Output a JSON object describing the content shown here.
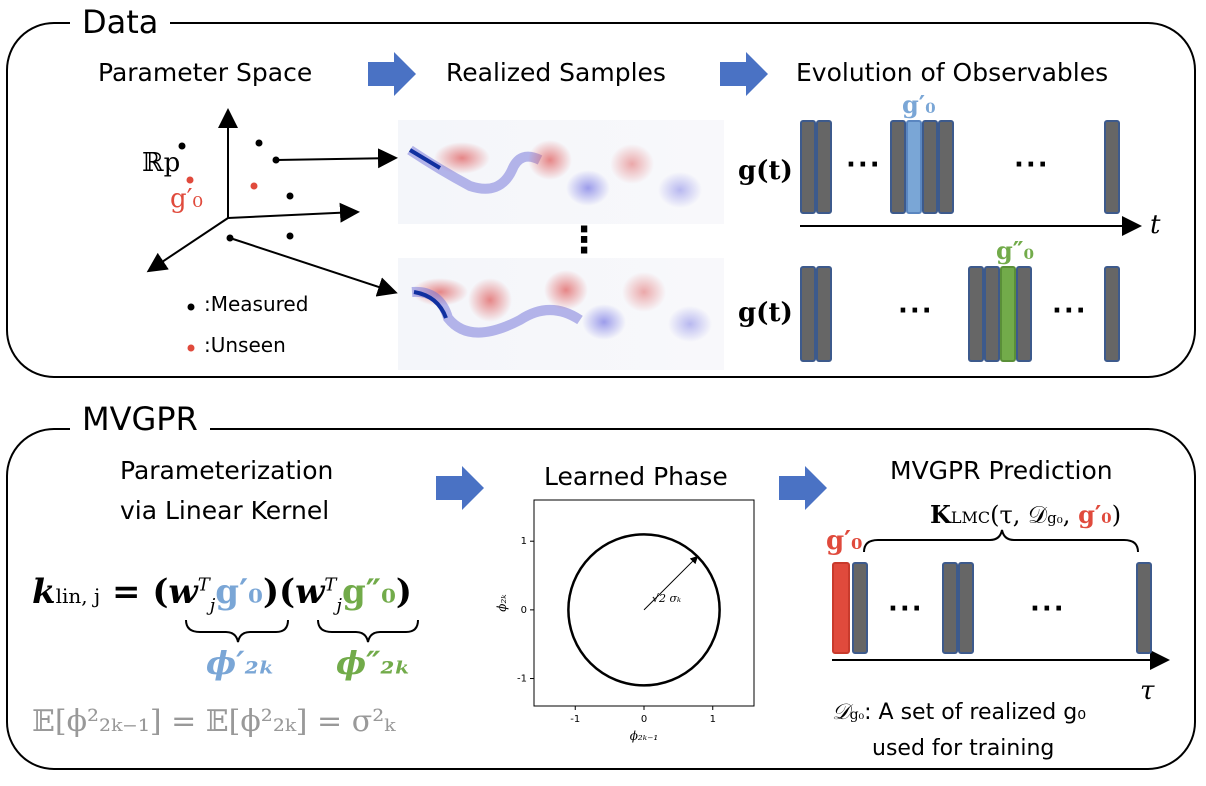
{
  "data_panel": {
    "title": "Data",
    "parameter_space": "Parameter Space",
    "realized_samples": "Realized Samples",
    "evolution": "Evolution of Observables",
    "space_label": "ℝp",
    "unseen_point_label": "g′₀",
    "legend_measured": ":Measured",
    "legend_unseen": ":Unseen",
    "vertical_ellipsis": "⋮",
    "observable_label": "g(t)",
    "time_axis": "t",
    "bar_highlight_1": "g′₀",
    "bar_highlight_2": "g″₀",
    "ellipsis": "···"
  },
  "mvgpr_panel": {
    "title": "MVGPR",
    "param_title_line1": "Parameterization",
    "param_title_line2": "via Linear Kernel",
    "kernel_lhs": "k",
    "kernel_sub": "lin, j",
    "kernel_eq": " = (",
    "kernel_w": "w",
    "kernel_g1": "g′₀",
    "kernel_mid": ")(",
    "kernel_g2": "g″₀",
    "kernel_end": ")",
    "phi_prime": "ϕ′₂ₖ",
    "phi_dprime": "ϕ″₂ₖ",
    "expectation": "𝔼[ϕ²₂ₖ₋₁] = 𝔼[ϕ²₂ₖ] = σ²ₖ",
    "learned_phase": "Learned Phase",
    "radius_label": "√2 σₖ",
    "xlabel": "ϕ₂ₖ₋₁",
    "ylabel": "ϕ₂ₖ",
    "prediction_title": "MVGPR Prediction",
    "lmc_label": "K_LMC(τ, 𝒟g₀, g′₀)",
    "lmc_main": "K",
    "lmc_sub": "LMC",
    "lmc_args": "(τ, 𝒟",
    "lmc_args_sub": "g₀",
    "lmc_args_end": ", ",
    "lmc_g": "g′₀",
    "lmc_close": ")",
    "pred_bar_label": "g′₀",
    "tau_axis": "τ",
    "dataset_desc_line1": ": A set of realized g₀",
    "dataset_symbol": "𝒟",
    "dataset_symbol_sub": "g₀",
    "dataset_desc_line2": "used for training",
    "ellipsis": "···"
  },
  "chart_data": {
    "type": "scatter",
    "title": "Learned Phase",
    "xlabel": "ϕ_{2k-1}",
    "ylabel": "ϕ_{2k}",
    "xlim": [
      -1.6,
      1.6
    ],
    "ylim": [
      -1.4,
      1.6
    ],
    "xticks": [
      -1,
      0,
      1
    ],
    "yticks": [
      -1,
      0,
      1
    ],
    "circle": {
      "center": [
        0,
        0
      ],
      "radius": 1.1
    },
    "grid": false
  },
  "colors": {
    "blue": "#7aa6d6",
    "green": "#72ab4a",
    "red": "#e04a3c",
    "gray_bar": "#666666",
    "arrow_blue": "#4a72c4"
  }
}
